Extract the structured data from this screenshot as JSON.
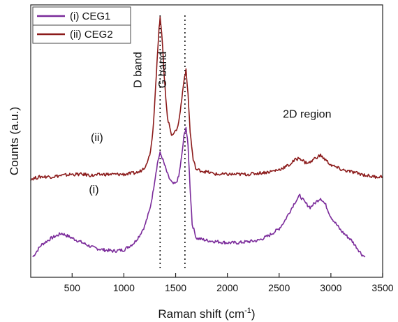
{
  "chart_data": {
    "type": "line",
    "title": "",
    "xlabel": "Raman shift (cm",
    "xlabel_sup": "-1",
    "xlabel_suffix": ")",
    "ylabel": "Counts (a.u.)",
    "xlim": [
      100,
      3500
    ],
    "xticks": [
      500,
      1000,
      1500,
      2000,
      2500,
      3000,
      3500
    ],
    "y_ticks_shown": false,
    "grid": false,
    "legend_position": "top-left",
    "legend": [
      {
        "label": "(i) CEG1",
        "color": "#7a2a9a"
      },
      {
        "label": "(ii) CEG2",
        "color": "#8b1a1a"
      }
    ],
    "series": [
      {
        "name": "(i) CEG1",
        "label": "(i)",
        "color": "#7a2a9a",
        "x": [
          120,
          200,
          300,
          400,
          500,
          600,
          700,
          800,
          900,
          1000,
          1100,
          1150,
          1200,
          1250,
          1280,
          1310,
          1330,
          1350,
          1370,
          1400,
          1430,
          1470,
          1500,
          1530,
          1560,
          1580,
          1600,
          1620,
          1640,
          1660,
          1700,
          1800,
          1900,
          2000,
          2100,
          2200,
          2300,
          2400,
          2500,
          2550,
          2600,
          2650,
          2700,
          2750,
          2800,
          2850,
          2900,
          2950,
          3000,
          3100,
          3200,
          3300,
          3330
        ],
        "y": [
          0.03,
          0.08,
          0.11,
          0.13,
          0.11,
          0.09,
          0.07,
          0.06,
          0.055,
          0.06,
          0.09,
          0.12,
          0.16,
          0.23,
          0.3,
          0.39,
          0.44,
          0.47,
          0.45,
          0.41,
          0.37,
          0.34,
          0.34,
          0.37,
          0.46,
          0.54,
          0.58,
          0.5,
          0.32,
          0.17,
          0.11,
          0.1,
          0.095,
          0.09,
          0.09,
          0.095,
          0.1,
          0.12,
          0.15,
          0.18,
          0.22,
          0.26,
          0.29,
          0.26,
          0.24,
          0.26,
          0.28,
          0.25,
          0.2,
          0.14,
          0.1,
          0.04,
          0.03
        ]
      },
      {
        "name": "(ii) CEG2",
        "label": "(ii)",
        "color": "#8b1a1a",
        "x": [
          100,
          200,
          300,
          400,
          500,
          600,
          700,
          800,
          900,
          1000,
          1100,
          1150,
          1200,
          1250,
          1280,
          1300,
          1320,
          1340,
          1350,
          1365,
          1390,
          1420,
          1460,
          1500,
          1530,
          1560,
          1580,
          1600,
          1620,
          1640,
          1670,
          1700,
          1800,
          1900,
          2000,
          2100,
          2200,
          2300,
          2400,
          2500,
          2600,
          2650,
          2700,
          2750,
          2800,
          2850,
          2900,
          2950,
          3000,
          3100,
          3200,
          3300,
          3400,
          3500
        ],
        "y": [
          0.36,
          0.37,
          0.37,
          0.375,
          0.38,
          0.38,
          0.375,
          0.38,
          0.38,
          0.38,
          0.385,
          0.39,
          0.41,
          0.46,
          0.56,
          0.7,
          0.86,
          1.0,
          1.04,
          0.98,
          0.8,
          0.62,
          0.55,
          0.56,
          0.6,
          0.7,
          0.78,
          0.82,
          0.72,
          0.56,
          0.44,
          0.4,
          0.39,
          0.38,
          0.38,
          0.38,
          0.38,
          0.385,
          0.39,
          0.4,
          0.42,
          0.44,
          0.45,
          0.43,
          0.43,
          0.45,
          0.46,
          0.44,
          0.42,
          0.4,
          0.39,
          0.38,
          0.37,
          0.37
        ]
      }
    ],
    "markers": [
      {
        "x": 1350,
        "label": "D band"
      },
      {
        "x": 1590,
        "label": "G band"
      }
    ],
    "annotations": [
      {
        "text": "2D region",
        "x": 2770,
        "y": 0.62
      }
    ]
  }
}
